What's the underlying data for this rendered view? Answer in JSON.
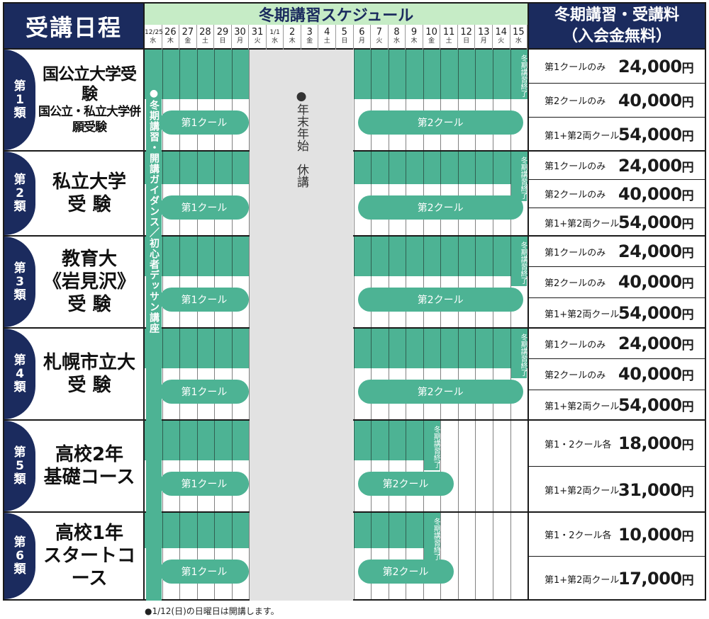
{
  "header": {
    "left_title": "受講日程",
    "schedule_title": "冬期講習スケジュール",
    "right_title_line1": "冬期講習・受講料",
    "right_title_line2": "（入会金無料）"
  },
  "dates": [
    {
      "d": "12/25",
      "w": "水"
    },
    {
      "d": "26",
      "w": "木"
    },
    {
      "d": "27",
      "w": "金"
    },
    {
      "d": "28",
      "w": "土"
    },
    {
      "d": "29",
      "w": "日"
    },
    {
      "d": "30",
      "w": "月"
    },
    {
      "d": "31",
      "w": "火"
    },
    {
      "d": "1/1",
      "w": "水"
    },
    {
      "d": "2",
      "w": "木"
    },
    {
      "d": "3",
      "w": "金"
    },
    {
      "d": "4",
      "w": "土"
    },
    {
      "d": "5",
      "w": "日"
    },
    {
      "d": "6",
      "w": "月"
    },
    {
      "d": "7",
      "w": "火"
    },
    {
      "d": "8",
      "w": "水"
    },
    {
      "d": "9",
      "w": "木"
    },
    {
      "d": "10",
      "w": "金"
    },
    {
      "d": "11",
      "w": "土"
    },
    {
      "d": "12",
      "w": "日"
    },
    {
      "d": "13",
      "w": "月"
    },
    {
      "d": "14",
      "w": "火"
    },
    {
      "d": "15",
      "w": "水"
    }
  ],
  "guidance_text": "●冬期講習・開講ガイダンス／初心者デッサン講座",
  "holiday_text": "●年末年始　休講",
  "kur1_label": "第1クール",
  "kur2_label": "第2クール",
  "end_label": "冬期講習終了",
  "categories": [
    {
      "tab": [
        "第",
        "1",
        "類"
      ],
      "name": [
        "国公立大学受験",
        "国公立・私立大学併願受験"
      ],
      "prices": [
        {
          "label": "第1クールのみ",
          "value": "24,000",
          "yen": "円"
        },
        {
          "label": "第2クールのみ",
          "value": "40,000",
          "yen": "円"
        },
        {
          "label": "第1+第2両クール",
          "value": "54,000",
          "yen": "円"
        }
      ]
    },
    {
      "tab": [
        "第",
        "2",
        "類"
      ],
      "name": [
        "私立大学",
        "受 験"
      ],
      "prices": [
        {
          "label": "第1クールのみ",
          "value": "24,000",
          "yen": "円"
        },
        {
          "label": "第2クールのみ",
          "value": "40,000",
          "yen": "円"
        },
        {
          "label": "第1+第2両クール",
          "value": "54,000",
          "yen": "円"
        }
      ]
    },
    {
      "tab": [
        "第",
        "3",
        "類"
      ],
      "name": [
        "教育大",
        "《岩見沢》",
        "受 験"
      ],
      "prices": [
        {
          "label": "第1クールのみ",
          "value": "24,000",
          "yen": "円"
        },
        {
          "label": "第2クールのみ",
          "value": "40,000",
          "yen": "円"
        },
        {
          "label": "第1+第2両クール",
          "value": "54,000",
          "yen": "円"
        }
      ]
    },
    {
      "tab": [
        "第",
        "4",
        "類"
      ],
      "name": [
        "札幌市立大",
        "受 験"
      ],
      "prices": [
        {
          "label": "第1クールのみ",
          "value": "24,000",
          "yen": "円"
        },
        {
          "label": "第2クールのみ",
          "value": "40,000",
          "yen": "円"
        },
        {
          "label": "第1+第2両クール",
          "value": "54,000",
          "yen": "円"
        }
      ]
    },
    {
      "tab": [
        "第",
        "5",
        "類"
      ],
      "name": [
        "高校2年",
        "基礎コース"
      ],
      "prices": [
        {
          "label": "第1・2クール各",
          "value": "18,000",
          "yen": "円"
        },
        {
          "label": "第1+第2両クール",
          "value": "31,000",
          "yen": "円"
        }
      ]
    },
    {
      "tab": [
        "第",
        "6",
        "類"
      ],
      "name": [
        "高校1年",
        "スタートコース"
      ],
      "prices": [
        {
          "label": "第1・2クール各",
          "value": "10,000",
          "yen": "円"
        },
        {
          "label": "第1+第2両クール",
          "value": "17,000",
          "yen": "円"
        }
      ]
    }
  ],
  "note": "●1/12(日)の日曜日は開講します。"
}
